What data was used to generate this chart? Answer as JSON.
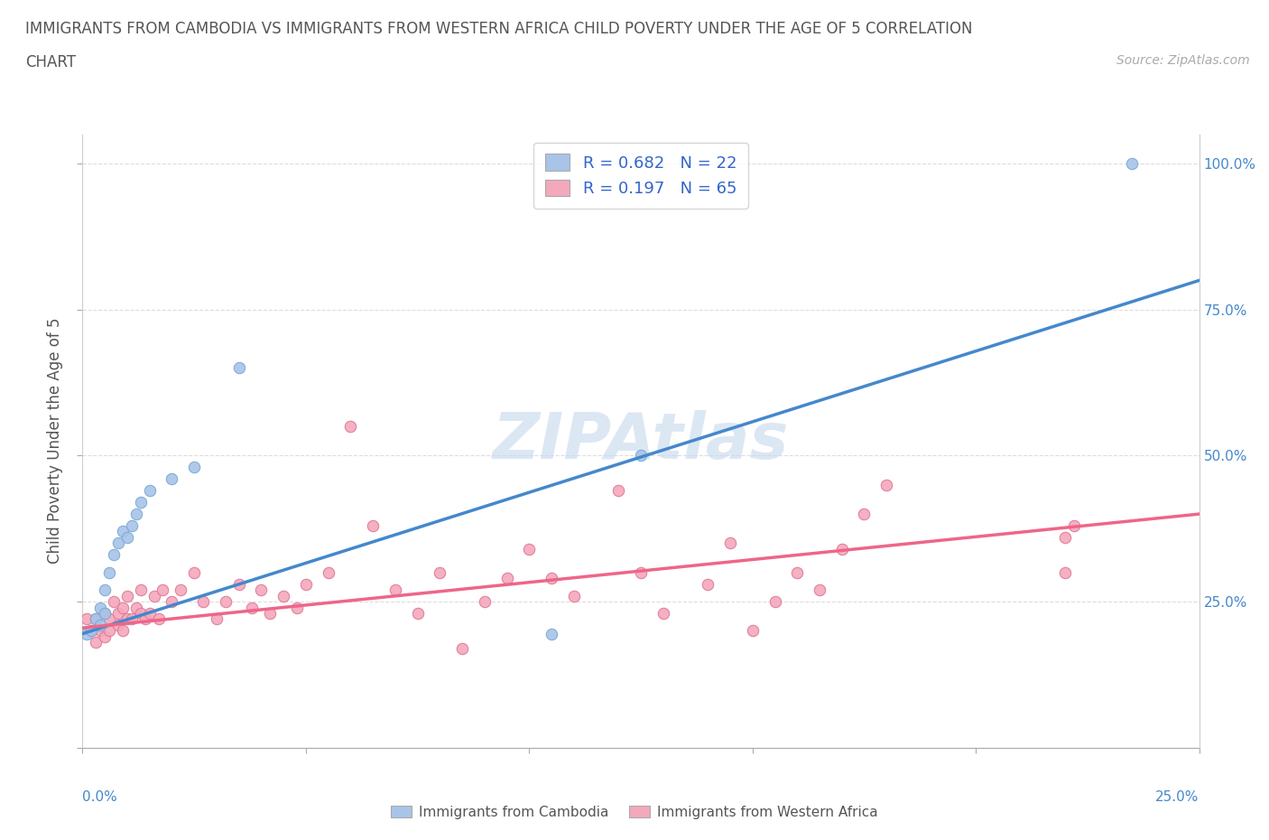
{
  "title_line1": "IMMIGRANTS FROM CAMBODIA VS IMMIGRANTS FROM WESTERN AFRICA CHILD POVERTY UNDER THE AGE OF 5 CORRELATION",
  "title_line2": "CHART",
  "source_text": "Source: ZipAtlas.com",
  "ylabel": "Child Poverty Under the Age of 5",
  "xlim": [
    0.0,
    0.25
  ],
  "ylim": [
    0.0,
    1.05
  ],
  "cambodia_color": "#a8c4e8",
  "cambodia_edge_color": "#7aaad4",
  "western_africa_color": "#f4a8bc",
  "western_africa_edge_color": "#e07898",
  "cambodia_line_color": "#4488cc",
  "western_africa_line_color": "#ee6688",
  "cambodia_R": 0.682,
  "cambodia_N": 22,
  "western_africa_R": 0.197,
  "western_africa_N": 65,
  "watermark": "ZIPAtlas",
  "background_color": "#ffffff",
  "grid_color": "#dddddd",
  "title_color": "#555555",
  "legend_R_color": "#3366cc",
  "cam_line_x0": 0.0,
  "cam_line_y0": 0.195,
  "cam_line_x1": 0.25,
  "cam_line_y1": 0.8,
  "wa_line_x0": 0.0,
  "wa_line_y0": 0.205,
  "wa_line_x1": 0.25,
  "wa_line_y1": 0.4,
  "cambodia_x": [
    0.001,
    0.002,
    0.003,
    0.004,
    0.004,
    0.005,
    0.005,
    0.006,
    0.007,
    0.008,
    0.009,
    0.01,
    0.011,
    0.012,
    0.013,
    0.015,
    0.02,
    0.025,
    0.035,
    0.105,
    0.125,
    0.235
  ],
  "cambodia_y": [
    0.195,
    0.2,
    0.22,
    0.21,
    0.24,
    0.23,
    0.27,
    0.3,
    0.33,
    0.35,
    0.37,
    0.36,
    0.38,
    0.4,
    0.42,
    0.44,
    0.46,
    0.48,
    0.65,
    0.195,
    0.5,
    1.0
  ],
  "western_africa_x": [
    0.001,
    0.002,
    0.003,
    0.003,
    0.004,
    0.005,
    0.005,
    0.006,
    0.006,
    0.007,
    0.008,
    0.008,
    0.009,
    0.009,
    0.01,
    0.01,
    0.011,
    0.012,
    0.013,
    0.013,
    0.014,
    0.015,
    0.016,
    0.017,
    0.018,
    0.02,
    0.022,
    0.025,
    0.027,
    0.03,
    0.032,
    0.035,
    0.038,
    0.04,
    0.042,
    0.045,
    0.048,
    0.05,
    0.055,
    0.06,
    0.065,
    0.07,
    0.075,
    0.08,
    0.085,
    0.09,
    0.095,
    0.1,
    0.105,
    0.11,
    0.12,
    0.125,
    0.13,
    0.14,
    0.145,
    0.15,
    0.155,
    0.16,
    0.165,
    0.17,
    0.175,
    0.18,
    0.22,
    0.22,
    0.222
  ],
  "western_africa_y": [
    0.22,
    0.2,
    0.18,
    0.22,
    0.2,
    0.23,
    0.19,
    0.22,
    0.2,
    0.25,
    0.21,
    0.23,
    0.2,
    0.24,
    0.22,
    0.26,
    0.22,
    0.24,
    0.23,
    0.27,
    0.22,
    0.23,
    0.26,
    0.22,
    0.27,
    0.25,
    0.27,
    0.3,
    0.25,
    0.22,
    0.25,
    0.28,
    0.24,
    0.27,
    0.23,
    0.26,
    0.24,
    0.28,
    0.3,
    0.55,
    0.38,
    0.27,
    0.23,
    0.3,
    0.17,
    0.25,
    0.29,
    0.34,
    0.29,
    0.26,
    0.44,
    0.3,
    0.23,
    0.28,
    0.35,
    0.2,
    0.25,
    0.3,
    0.27,
    0.34,
    0.4,
    0.45,
    0.3,
    0.36,
    0.38
  ]
}
